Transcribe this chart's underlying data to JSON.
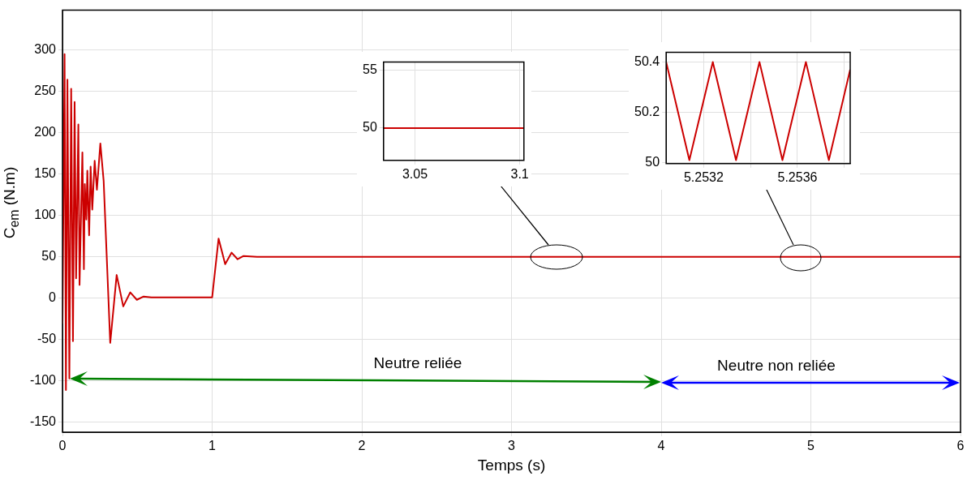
{
  "chart_data": [
    {
      "type": "line",
      "xlabel": "Temps (s)",
      "ylabel": "C$_{em}$ (N.m)",
      "color": "#cc0000",
      "grid": true,
      "x": [
        0,
        0.014,
        0.023,
        0.033,
        0.046,
        0.058,
        0.07,
        0.081,
        0.091,
        0.106,
        0.114,
        0.133,
        0.143,
        0.149,
        0.159,
        0.166,
        0.178,
        0.188,
        0.199,
        0.215,
        0.23,
        0.253,
        0.275,
        0.319,
        0.362,
        0.406,
        0.453,
        0.497,
        0.542,
        0.594,
        1.0,
        1.043,
        1.087,
        1.13,
        1.17,
        1.21,
        1.3,
        6
      ],
      "values": [
        -31,
        295,
        -111,
        264,
        -97,
        253,
        -52,
        237,
        24,
        210,
        16,
        176,
        35,
        138,
        95,
        154,
        76,
        159,
        107,
        166,
        131,
        187,
        142,
        -54,
        28,
        -10,
        7,
        -2,
        2,
        1,
        1,
        72,
        41,
        55,
        47,
        51,
        50,
        50
      ],
      "xlim": [
        0,
        6
      ],
      "ylim": [
        -162,
        348
      ],
      "xticks": [
        0,
        1,
        2,
        3,
        4,
        5,
        6
      ],
      "yticks": [
        -150,
        -100,
        -50,
        0,
        50,
        100,
        150,
        200,
        250,
        300
      ],
      "annotations": [
        "Neutre reliée",
        "Neutre non reliée"
      ]
    },
    {
      "type": "line",
      "color": "#cc0000",
      "grid": true,
      "x": [
        3.035,
        3.102
      ],
      "values": [
        50,
        50
      ],
      "xlim": [
        3.035,
        3.102
      ],
      "ylim": [
        47.2,
        55.7
      ],
      "xticks": [
        3.05,
        3.1
      ],
      "yticks": [
        50,
        55
      ]
    },
    {
      "type": "line",
      "color": "#cc0000",
      "grid": true,
      "x": [
        5.25304,
        5.253139,
        5.253239,
        5.253338,
        5.253438,
        5.253536,
        5.253636,
        5.253734,
        5.253825
      ],
      "values": [
        50.4,
        50.01,
        50.4,
        50.01,
        50.4,
        50.01,
        50.4,
        50.01,
        50.37
      ],
      "xlim": [
        5.25304,
        5.253825
      ],
      "ylim": [
        49.996,
        50.438
      ],
      "xticks": [
        5.2532,
        {
          "value": 5.2534,
          "label": null
        },
        5.2536,
        {
          "value": 5.2538,
          "label": null
        }
      ],
      "yticks": [
        50,
        50.2,
        50.4
      ]
    }
  ]
}
